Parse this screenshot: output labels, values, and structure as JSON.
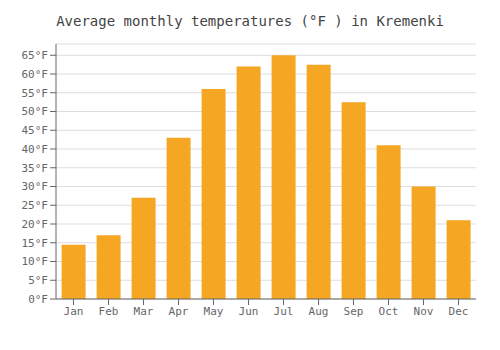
{
  "chart_data": {
    "type": "bar",
    "title": "Average monthly temperatures (°F ) in Kremenki",
    "categories": [
      "Jan",
      "Feb",
      "Mar",
      "Apr",
      "May",
      "Jun",
      "Jul",
      "Aug",
      "Sep",
      "Oct",
      "Nov",
      "Dec"
    ],
    "values": [
      14.5,
      17.0,
      27.0,
      43.0,
      56.0,
      62.0,
      65.0,
      62.5,
      52.5,
      41.0,
      30.0,
      21.0
    ],
    "color": "#F5A623",
    "ylim": [
      0,
      68
    ],
    "yticks": [
      {
        "value": 0,
        "label": "0°F"
      },
      {
        "value": 5,
        "label": "5°F"
      },
      {
        "value": 10,
        "label": "10°F"
      },
      {
        "value": 15,
        "label": "15°F"
      },
      {
        "value": 20,
        "label": "20°F"
      },
      {
        "value": 25,
        "label": "25°F"
      },
      {
        "value": 30,
        "label": "30°F"
      },
      {
        "value": 35,
        "label": "35°F"
      },
      {
        "value": 40,
        "label": "40°F"
      },
      {
        "value": 45,
        "label": "45°F"
      },
      {
        "value": 50,
        "label": "50°F"
      },
      {
        "value": 55,
        "label": "55°F"
      },
      {
        "value": 60,
        "label": "60°F"
      },
      {
        "value": 65,
        "label": "65°F"
      }
    ],
    "grid": true
  }
}
